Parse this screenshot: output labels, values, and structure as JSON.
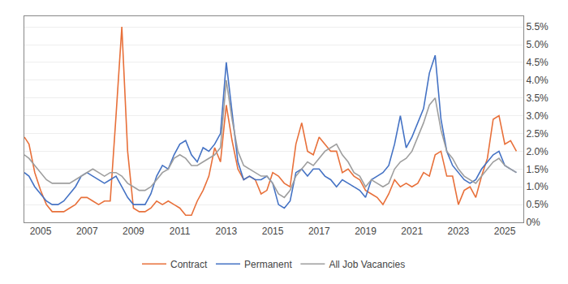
{
  "chart_data": {
    "type": "line",
    "x": [
      2004.3,
      2004.5,
      2004.75,
      2005.0,
      2005.25,
      2005.5,
      2005.75,
      2006.0,
      2006.25,
      2006.5,
      2006.75,
      2007.0,
      2007.25,
      2007.5,
      2007.75,
      2008.0,
      2008.25,
      2008.5,
      2008.75,
      2009.0,
      2009.25,
      2009.5,
      2009.75,
      2010.0,
      2010.25,
      2010.5,
      2010.75,
      2011.0,
      2011.25,
      2011.5,
      2011.75,
      2012.0,
      2012.25,
      2012.5,
      2012.75,
      2013.0,
      2013.25,
      2013.5,
      2013.75,
      2014.0,
      2014.25,
      2014.5,
      2014.75,
      2015.0,
      2015.25,
      2015.5,
      2015.75,
      2016.0,
      2016.25,
      2016.5,
      2016.75,
      2017.0,
      2017.25,
      2017.5,
      2017.75,
      2018.0,
      2018.25,
      2018.5,
      2018.75,
      2019.0,
      2019.25,
      2019.5,
      2019.75,
      2020.0,
      2020.25,
      2020.5,
      2020.75,
      2021.0,
      2021.25,
      2021.5,
      2021.75,
      2022.0,
      2022.25,
      2022.5,
      2022.75,
      2023.0,
      2023.25,
      2023.5,
      2023.75,
      2024.0,
      2024.25,
      2024.5,
      2024.75,
      2025.0,
      2025.25,
      2025.5
    ],
    "series": [
      {
        "name": "Contract",
        "color": "#E8703A",
        "values": [
          0.024,
          0.022,
          0.014,
          0.009,
          0.005,
          0.003,
          0.003,
          0.003,
          0.004,
          0.005,
          0.007,
          0.007,
          0.006,
          0.005,
          0.006,
          0.006,
          0.03,
          0.055,
          0.02,
          0.004,
          0.003,
          0.003,
          0.004,
          0.006,
          0.005,
          0.006,
          0.005,
          0.004,
          0.002,
          0.002,
          0.006,
          0.009,
          0.013,
          0.021,
          0.017,
          0.033,
          0.023,
          0.015,
          0.012,
          0.013,
          0.012,
          0.008,
          0.009,
          0.014,
          0.013,
          0.011,
          0.01,
          0.022,
          0.028,
          0.02,
          0.019,
          0.024,
          0.022,
          0.02,
          0.02,
          0.014,
          0.015,
          0.013,
          0.012,
          0.009,
          0.008,
          0.007,
          0.005,
          0.008,
          0.012,
          0.01,
          0.011,
          0.01,
          0.011,
          0.014,
          0.013,
          0.019,
          0.02,
          0.013,
          0.013,
          0.005,
          0.009,
          0.01,
          0.007,
          0.013,
          0.018,
          0.029,
          0.03,
          0.022,
          0.023,
          0.02
        ]
      },
      {
        "name": "Permanent",
        "color": "#4472C4",
        "values": [
          0.014,
          0.013,
          0.01,
          0.008,
          0.006,
          0.005,
          0.005,
          0.006,
          0.008,
          0.01,
          0.013,
          0.014,
          0.013,
          0.012,
          0.011,
          0.012,
          0.013,
          0.01,
          0.007,
          0.005,
          0.005,
          0.005,
          0.008,
          0.013,
          0.016,
          0.015,
          0.019,
          0.022,
          0.023,
          0.019,
          0.017,
          0.021,
          0.02,
          0.022,
          0.025,
          0.045,
          0.031,
          0.017,
          0.012,
          0.013,
          0.012,
          0.012,
          0.013,
          0.011,
          0.005,
          0.004,
          0.006,
          0.014,
          0.015,
          0.013,
          0.015,
          0.015,
          0.013,
          0.012,
          0.01,
          0.012,
          0.011,
          0.01,
          0.009,
          0.007,
          0.012,
          0.013,
          0.014,
          0.016,
          0.022,
          0.03,
          0.021,
          0.024,
          0.028,
          0.032,
          0.042,
          0.047,
          0.029,
          0.02,
          0.016,
          0.014,
          0.012,
          0.011,
          0.012,
          0.015,
          0.017,
          0.019,
          0.02,
          0.016,
          0.015,
          0.014
        ]
      },
      {
        "name": "All Job Vacancies",
        "color": "#9E9E9E",
        "values": [
          0.019,
          0.018,
          0.016,
          0.014,
          0.012,
          0.011,
          0.011,
          0.011,
          0.011,
          0.012,
          0.013,
          0.014,
          0.015,
          0.014,
          0.013,
          0.014,
          0.014,
          0.013,
          0.011,
          0.01,
          0.009,
          0.009,
          0.01,
          0.012,
          0.014,
          0.015,
          0.018,
          0.019,
          0.018,
          0.016,
          0.016,
          0.017,
          0.018,
          0.019,
          0.021,
          0.04,
          0.029,
          0.02,
          0.016,
          0.015,
          0.014,
          0.013,
          0.013,
          0.011,
          0.008,
          0.007,
          0.009,
          0.013,
          0.015,
          0.017,
          0.016,
          0.018,
          0.02,
          0.021,
          0.022,
          0.019,
          0.017,
          0.014,
          0.013,
          0.01,
          0.012,
          0.011,
          0.01,
          0.011,
          0.015,
          0.017,
          0.018,
          0.02,
          0.024,
          0.028,
          0.033,
          0.035,
          0.026,
          0.02,
          0.018,
          0.015,
          0.013,
          0.012,
          0.011,
          0.013,
          0.015,
          0.017,
          0.018,
          0.016,
          0.015,
          0.014
        ]
      }
    ],
    "xlim": [
      2004.3,
      2025.8
    ],
    "xticks": [
      2005,
      2007,
      2009,
      2011,
      2013,
      2015,
      2017,
      2019,
      2021,
      2023,
      2025
    ],
    "ylim": [
      0.0,
      0.058
    ],
    "yticks": [
      {
        "value": 0.0,
        "label": "0%"
      },
      {
        "value": 0.005,
        "label": "0.5%"
      },
      {
        "value": 0.01,
        "label": "1.0%"
      },
      {
        "value": 0.015,
        "label": "1.5%"
      },
      {
        "value": 0.02,
        "label": "2.0%"
      },
      {
        "value": 0.025,
        "label": "2.5%"
      },
      {
        "value": 0.03,
        "label": "3.0%"
      },
      {
        "value": 0.035,
        "label": "3.5%"
      },
      {
        "value": 0.04,
        "label": "4.0%"
      },
      {
        "value": 0.045,
        "label": "4.5%"
      },
      {
        "value": 0.05,
        "label": "5.0%"
      },
      {
        "value": 0.055,
        "label": "5.5%"
      }
    ],
    "grid": true,
    "legend": "bottom"
  }
}
